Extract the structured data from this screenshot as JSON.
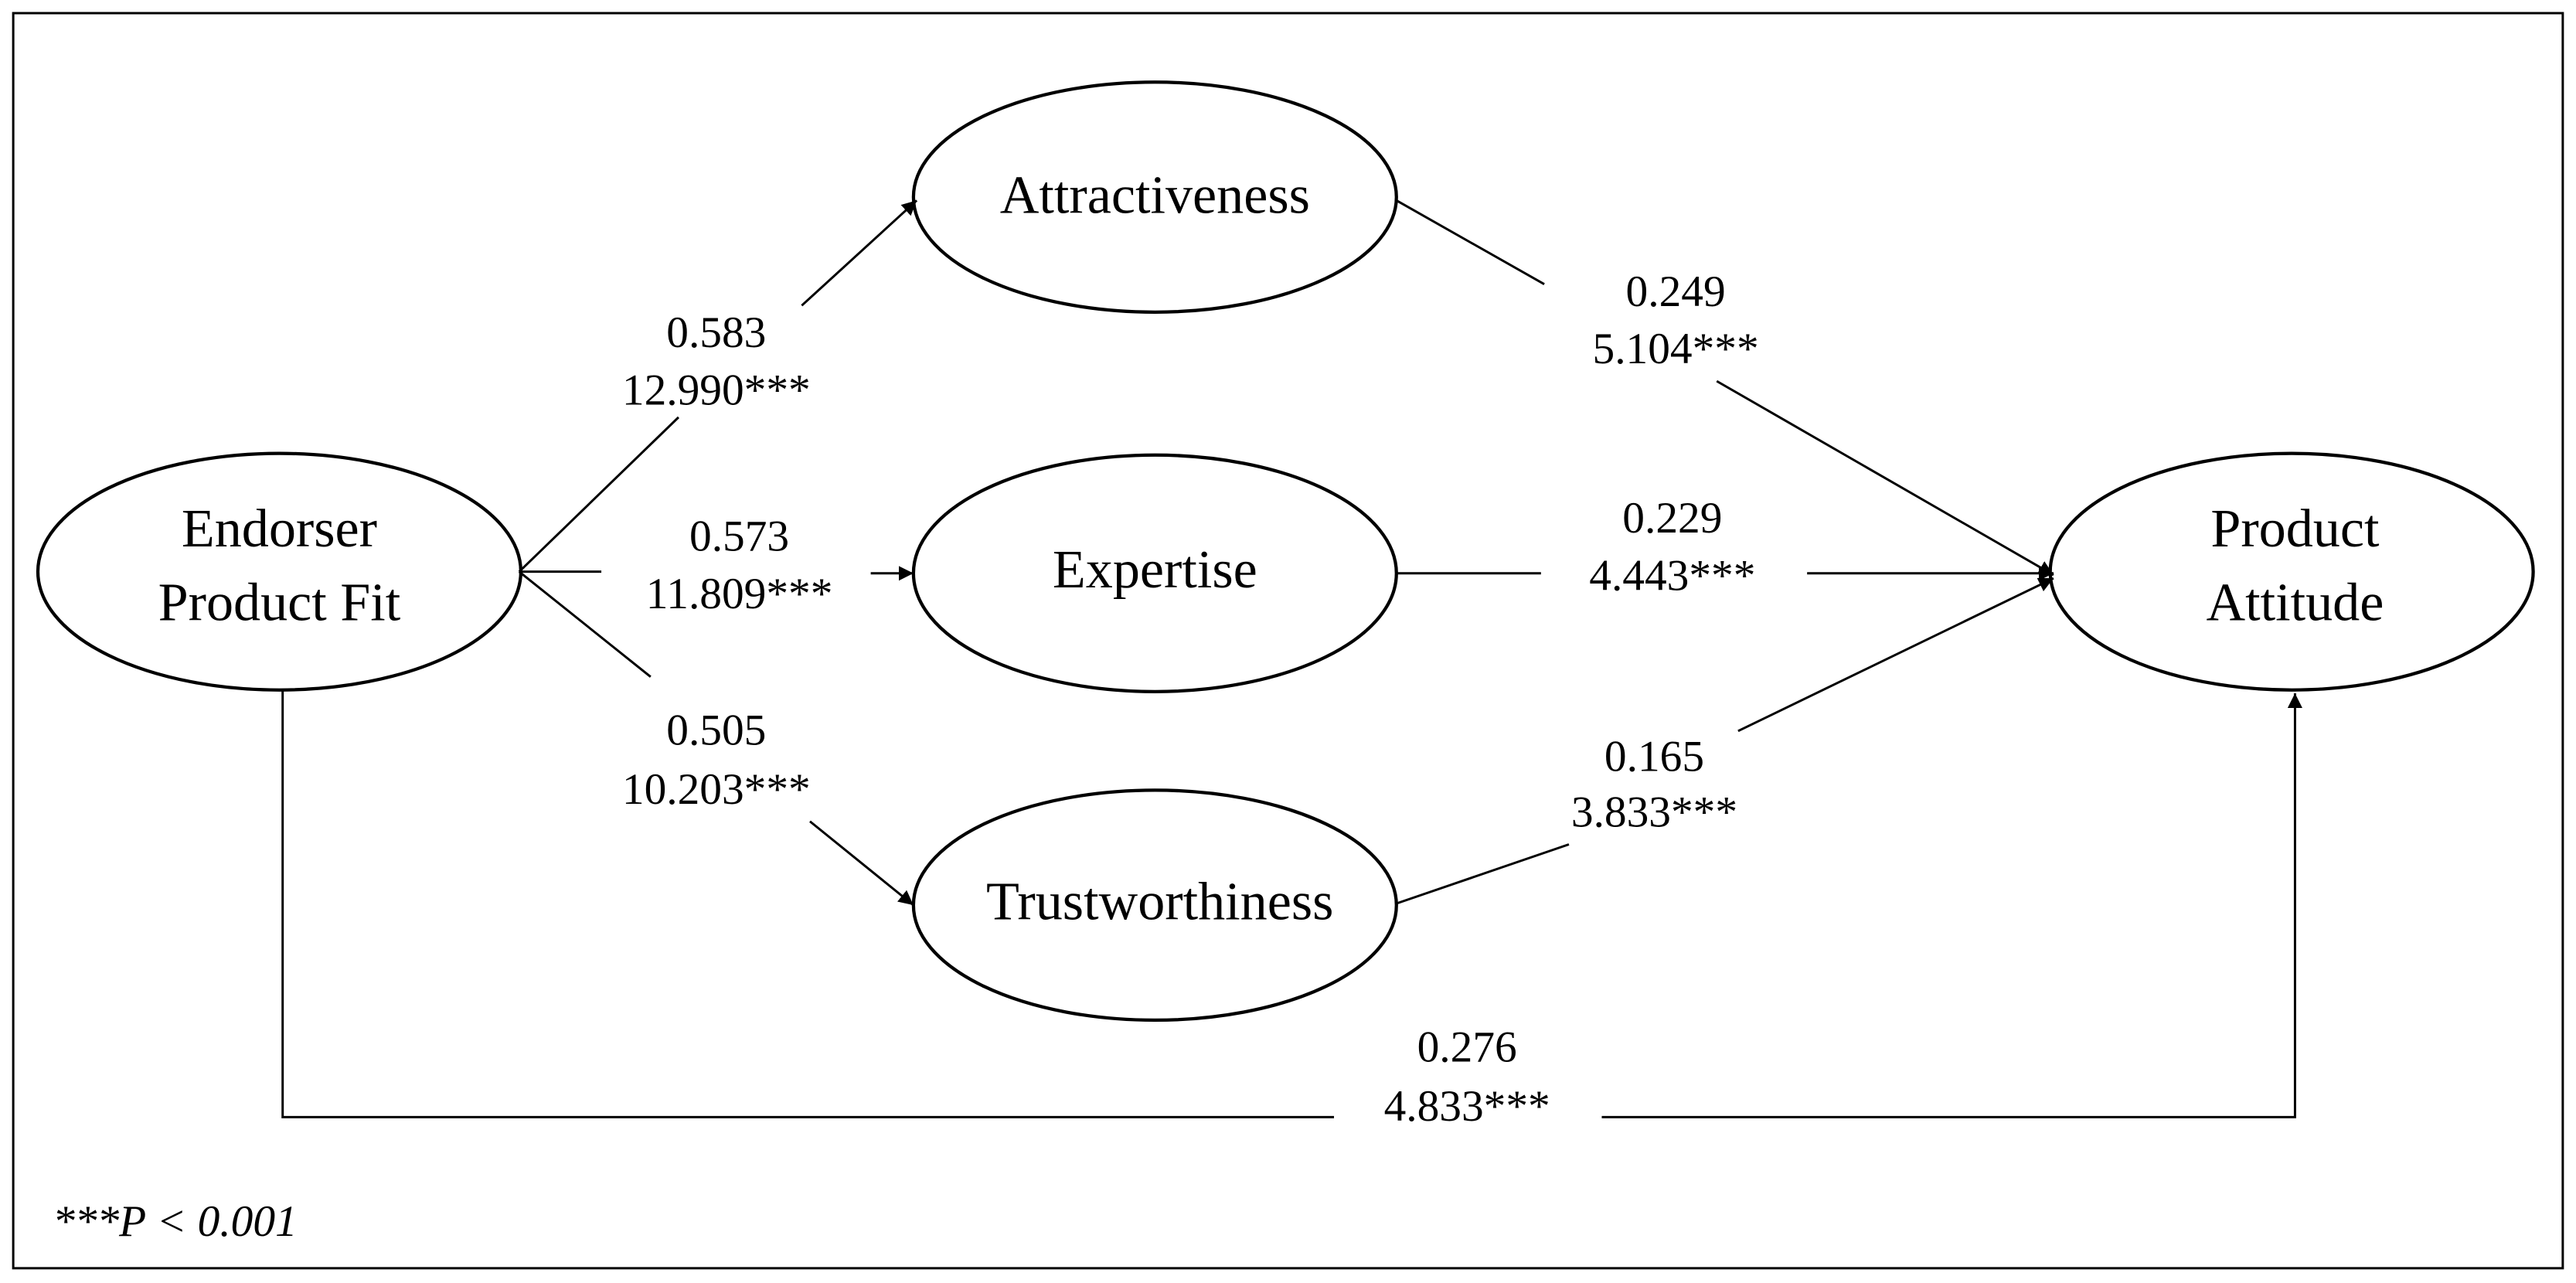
{
  "nodes": [
    {
      "label": [
        "Endorser",
        "Product Fit"
      ]
    },
    {
      "label": [
        "Attractiveness"
      ]
    },
    {
      "label": [
        "Expertise"
      ]
    },
    {
      "label": [
        "Trustworthiness"
      ]
    },
    {
      "label": [
        "Product",
        "Attitude"
      ]
    }
  ],
  "edges": [
    {
      "coefficient": "0.583",
      "t_value": "12.990***"
    },
    {
      "coefficient": "0.573",
      "t_value": "11.809***"
    },
    {
      "coefficient": "0.505",
      "t_value": "10.203***"
    },
    {
      "coefficient": "0.249",
      "t_value": "5.104***"
    },
    {
      "coefficient": "0.229",
      "t_value": "4.443***"
    },
    {
      "coefficient": "0.165",
      "t_value": "3.833***"
    },
    {
      "coefficient": "0.276",
      "t_value": "4.833***"
    }
  ],
  "footnote": "***P < 0.001"
}
